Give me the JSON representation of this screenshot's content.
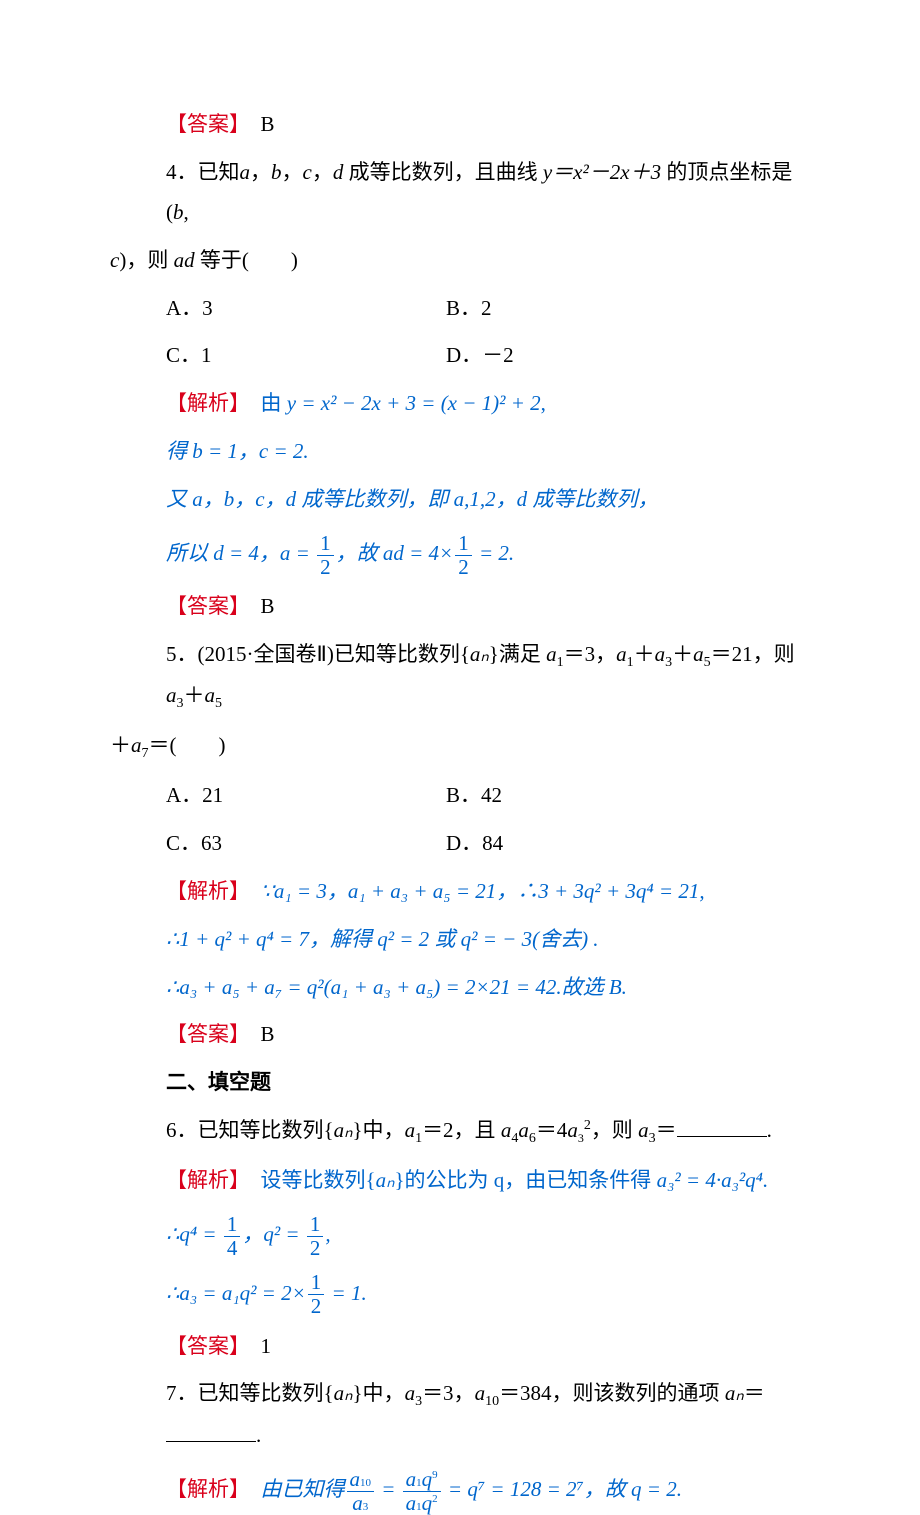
{
  "labels": {
    "answer": "【答案】",
    "solution": "【解析】"
  },
  "q3": {
    "answer_letter": "B"
  },
  "q4": {
    "text_a": "4．已知",
    "text_b": "，",
    "text_c": "，",
    "text_d": "，",
    "text_e": " 成等比数列，且曲线 ",
    "eq": "y＝x²－2x＋3",
    "text_f": " 的顶点坐标是(",
    "text_g": ",",
    "text_h": ")，则 ",
    "text_i": " 等于(　　)",
    "optA": "A．3",
    "optB": "B．2",
    "optC": "C．1",
    "optD": "D．－2",
    "sol1_a": "由 ",
    "sol1_eq": "y = x² − 2x + 3 = (x − 1)² + 2",
    "sol1_b": ",",
    "sol2": "得 b = 1，c = 2.",
    "sol3_a": "又 a，b，c，d 成等比数列，即 a,1,2，d 成等比数列，",
    "sol4_a": "所以 d = 4，a = ",
    "sol4_b": "，故 ad = 4×",
    "sol4_c": " = 2.",
    "answer_letter": "B"
  },
  "q5": {
    "text_a": "5．(2015·全国卷Ⅱ)已知等比数列{",
    "text_b": "}满足 ",
    "text_c": "＝3，",
    "text_d": "＋",
    "text_e": "＋",
    "text_f": "＝21，则 ",
    "text_g": "＋",
    "line2_a": "＋",
    "line2_b": "＝(　　)",
    "optA": "A．21",
    "optB": "B．42",
    "optC": "C．63",
    "optD": "D．84",
    "sol1": "∵a₁ = 3，a₁ + a₃ + a₅ = 21，∴3 + 3q² + 3q⁴ = 21,",
    "sol2": "∴1 + q² + q⁴ = 7，解得 q² = 2 或 q² = − 3(舍去) .",
    "sol3": "∴a₃ + a₅ + a₇ = q²(a₁ + a₃ + a₅) = 2×21 = 42.故选 B.",
    "answer_letter": "B"
  },
  "section2": "二、填空题",
  "q6": {
    "text_a": "6．已知等比数列{",
    "text_b": "}中，",
    "text_c": "＝2，且 ",
    "text_d": "＝4",
    "text_e": "，则 ",
    "text_f": "＝",
    "text_g": ".",
    "sol1_a": "设等比数列{",
    "sol1_b": "}的公比为 q，由已知条件得 ",
    "sol1_eq": "a₃² = 4·a₃²q⁴.",
    "sol2_a": "∴q⁴ = ",
    "sol2_b": "，q² = ",
    "sol2_c": ",",
    "sol3_a": "∴a₃ = a₁q² = 2×",
    "sol3_b": " = 1.",
    "answer_val": "1"
  },
  "q7": {
    "text_a": "7．已知等比数列{",
    "text_b": "}中，",
    "text_c": "＝3，",
    "text_d": "＝384，则该数列的通项 ",
    "text_e": "＝",
    "text_f": ".",
    "sol_a": "由已知得",
    "sol_mid": " = ",
    "sol_b": " = q⁷ = 128 = 2⁷，故 q = 2."
  },
  "vars": {
    "a": "a",
    "b": "b",
    "c": "c",
    "d": "d",
    "ad": "ad",
    "an": "aₙ"
  },
  "colors": {
    "red": "#d9001b",
    "blue": "#0066cc",
    "text": "#000000",
    "bg": "#ffffff"
  },
  "typography": {
    "base_fontsize": 21,
    "sub_fontsize": 14,
    "line_height": 1.9
  }
}
